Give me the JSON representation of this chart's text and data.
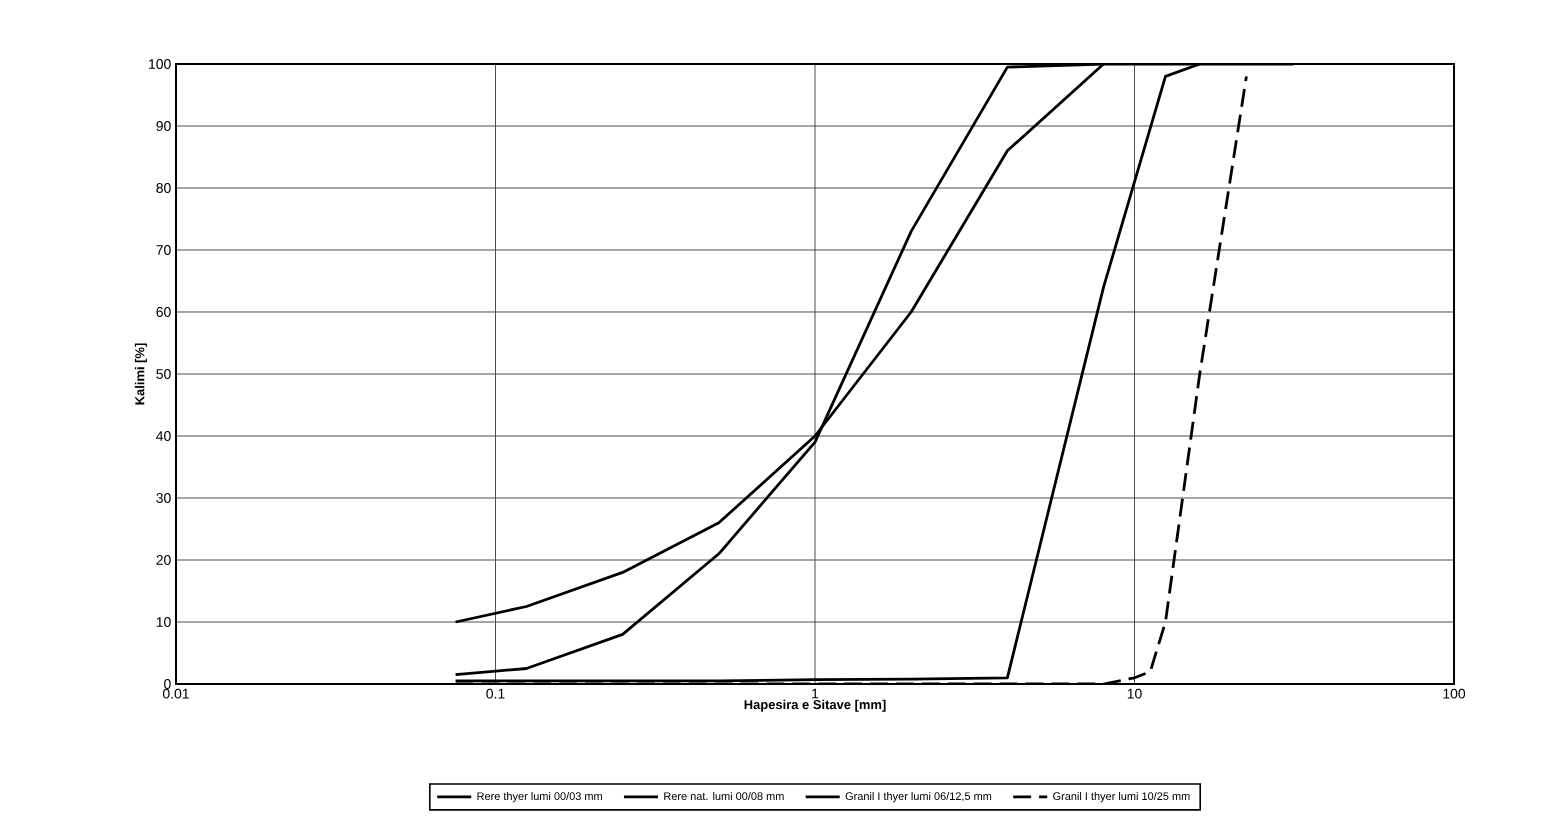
{
  "chart_data": {
    "type": "line",
    "xlabel": "Hapesira e Sitave [mm]",
    "ylabel": "Kalimi [%]",
    "log": "x",
    "xlim": [
      0.01,
      100
    ],
    "xticks": [
      0.01,
      0.1,
      1,
      10,
      100
    ],
    "ylim": [
      0,
      100
    ],
    "yticks": [
      0,
      10,
      20,
      30,
      40,
      50,
      60,
      70,
      80,
      90,
      100
    ],
    "grid": true,
    "legend": "bottom",
    "marker": "none",
    "series": [
      {
        "name": "Rere thyer  lumi 00/03 mm",
        "color": "#000000",
        "line_style": "solid",
        "x": [
          0.075,
          0.125,
          0.25,
          0.5,
          1,
          2,
          4,
          8
        ],
        "values": [
          1.5,
          2.5,
          8,
          21,
          39,
          73,
          99.5,
          100
        ]
      },
      {
        "name": "Rere nat.  lumi 00/08 mm",
        "color": "#000000",
        "line_style": "solid",
        "x": [
          0.075,
          0.125,
          0.25,
          0.5,
          1,
          2,
          4,
          8,
          16
        ],
        "values": [
          10,
          12.5,
          18,
          26,
          40,
          60,
          86,
          100,
          100
        ]
      },
      {
        "name": "Granil I thyer lumi 06/12,5 mm",
        "color": "#000000",
        "line_style": "solid",
        "x": [
          0.075,
          0.125,
          0.25,
          0.5,
          1,
          2,
          4,
          8,
          12.5,
          16,
          31.5
        ],
        "values": [
          0.5,
          0.5,
          0.5,
          0.5,
          0.7,
          0.8,
          1,
          64,
          98,
          100,
          100
        ]
      },
      {
        "name": "Granil I thyer lumi 10/25 mm",
        "color": "#000000",
        "line_style": "dashed",
        "x": [
          0.075,
          0.125,
          0.25,
          0.5,
          1,
          2,
          4,
          8,
          10,
          11.2,
          12.5,
          16,
          22.4
        ],
        "values": [
          0,
          0,
          0,
          0,
          0,
          0,
          0,
          0,
          1,
          2,
          10,
          50,
          98
        ]
      }
    ]
  }
}
